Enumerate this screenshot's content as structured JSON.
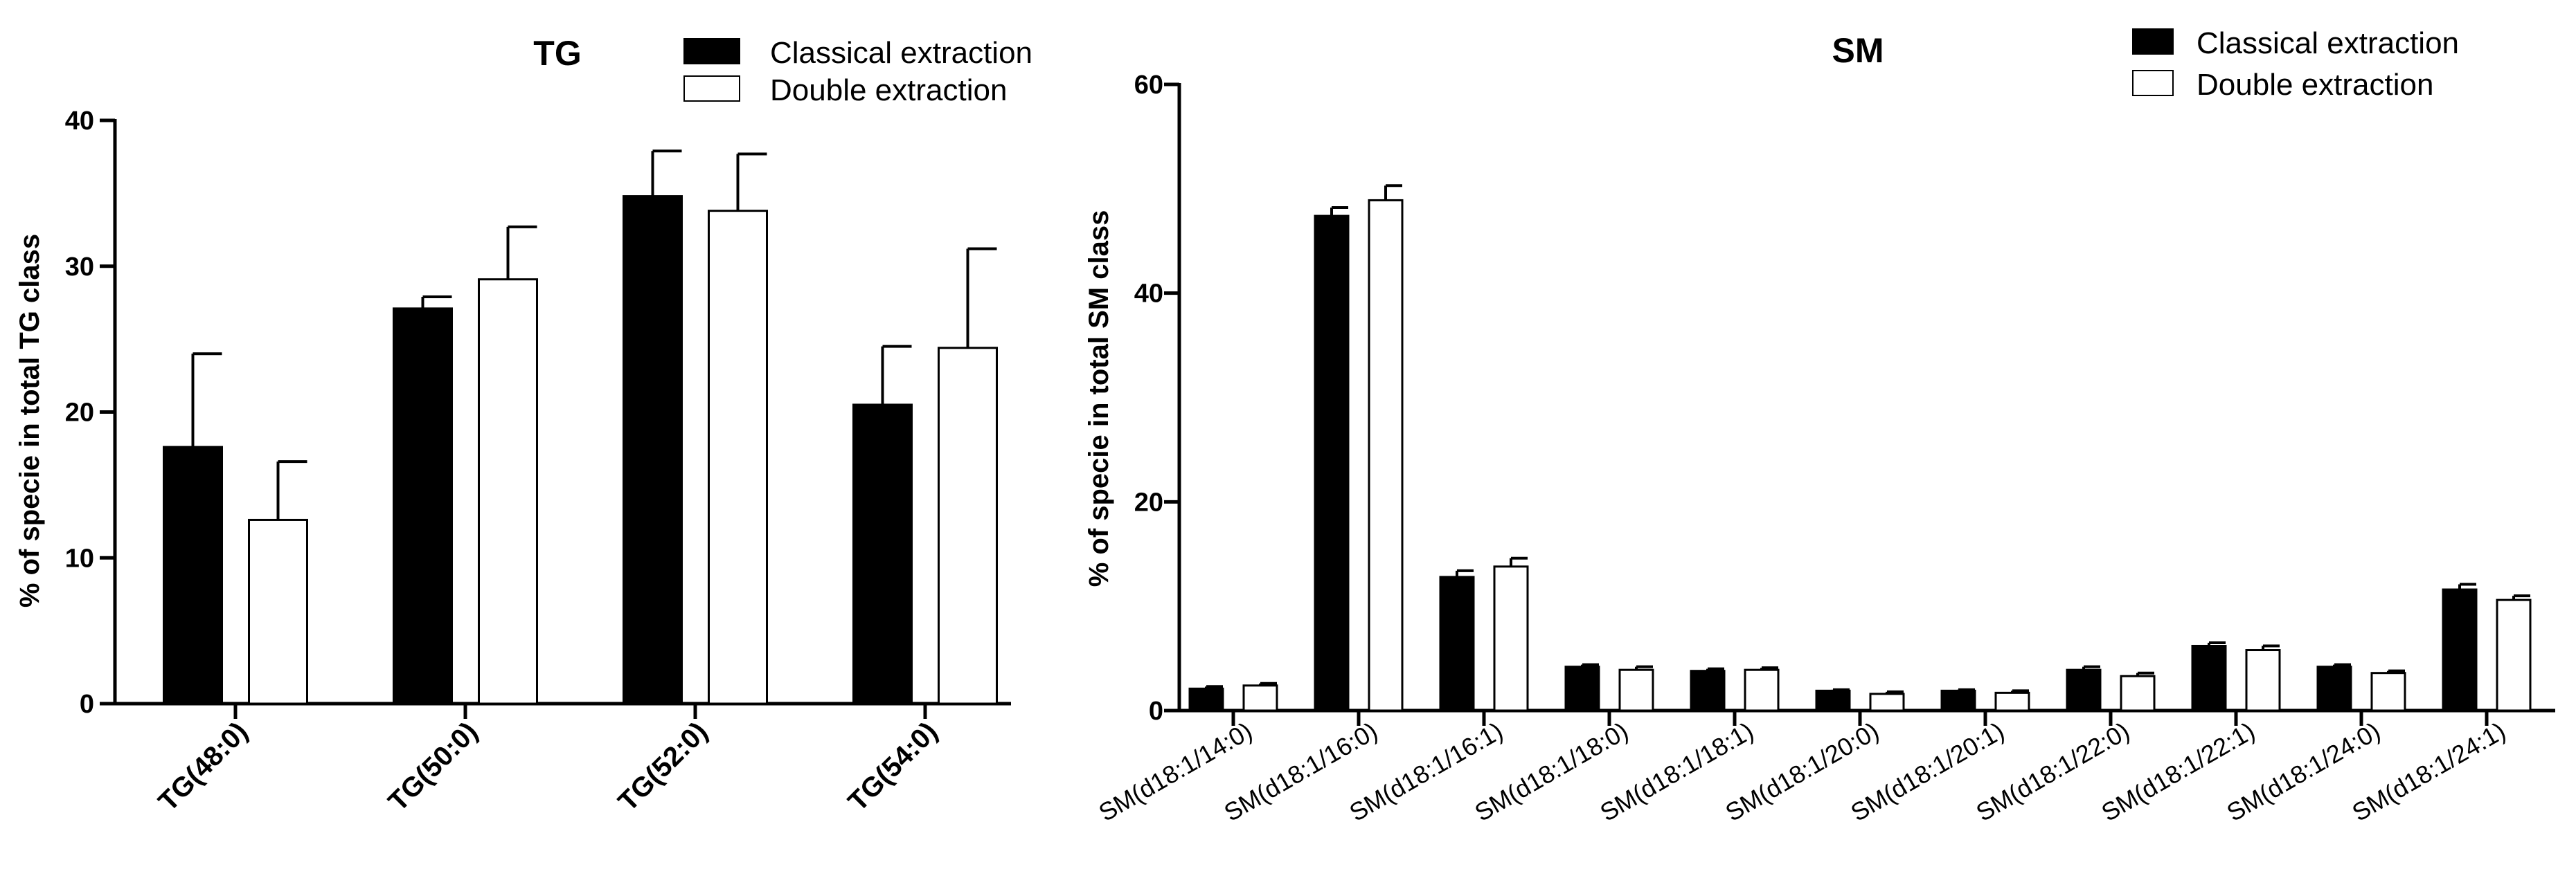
{
  "colors": {
    "classical": "#000000",
    "double": "#ffffff",
    "stroke": "#000000"
  },
  "chart_data": [
    {
      "type": "bar",
      "title": "TG",
      "xlabel": "",
      "ylabel": "% of specie in total TG class",
      "ylim": [
        0,
        40
      ],
      "yticks": [
        "0",
        "10",
        "20",
        "30",
        "40"
      ],
      "categories": [
        "TG(48:0)",
        "TG(50:0)",
        "TG(52:0)",
        "TG(54:0)"
      ],
      "series": [
        {
          "name": "Classical extraction",
          "values": [
            17.6,
            27.1,
            34.8,
            20.5
          ],
          "errors": [
            6.4,
            0.8,
            3.1,
            4.0
          ]
        },
        {
          "name": "Double extraction",
          "values": [
            12.6,
            29.1,
            33.8,
            24.4
          ],
          "errors": [
            4.0,
            3.6,
            3.9,
            6.8
          ]
        }
      ],
      "legend": "top-right",
      "grid": false
    },
    {
      "type": "bar",
      "title": "SM",
      "xlabel": "",
      "ylabel": "% of specie in total SM class",
      "ylim": [
        0,
        60
      ],
      "yticks": [
        "0",
        "20",
        "40",
        "60"
      ],
      "categories": [
        "SM(d18:1/14:0)",
        "SM(d18:1/16:0)",
        "SM(d18:1/16:1)",
        "SM(d18:1/18:0)",
        "SM(d18:1/18:1)",
        "SM(d18:1/20:0)",
        "SM(d18:1/20:1)",
        "SM(d18:1/22:0)",
        "SM(d18:1/22:1)",
        "SM(d18:1/24:0)",
        "SM(d18:1/24:1)"
      ],
      "series": [
        {
          "name": "Classical extraction",
          "values": [
            2.1,
            47.4,
            12.8,
            4.2,
            3.8,
            1.9,
            1.9,
            3.9,
            6.2,
            4.2,
            11.6
          ],
          "errors": [
            0.2,
            0.8,
            0.6,
            0.2,
            0.2,
            0.1,
            0.1,
            0.3,
            0.3,
            0.2,
            0.5
          ]
        },
        {
          "name": "Double extraction",
          "values": [
            2.4,
            48.9,
            13.8,
            3.9,
            3.9,
            1.6,
            1.7,
            3.3,
            5.8,
            3.6,
            10.6
          ],
          "errors": [
            0.2,
            1.4,
            0.8,
            0.3,
            0.2,
            0.2,
            0.2,
            0.3,
            0.4,
            0.2,
            0.4
          ]
        }
      ],
      "legend": "top-right",
      "grid": false
    }
  ]
}
